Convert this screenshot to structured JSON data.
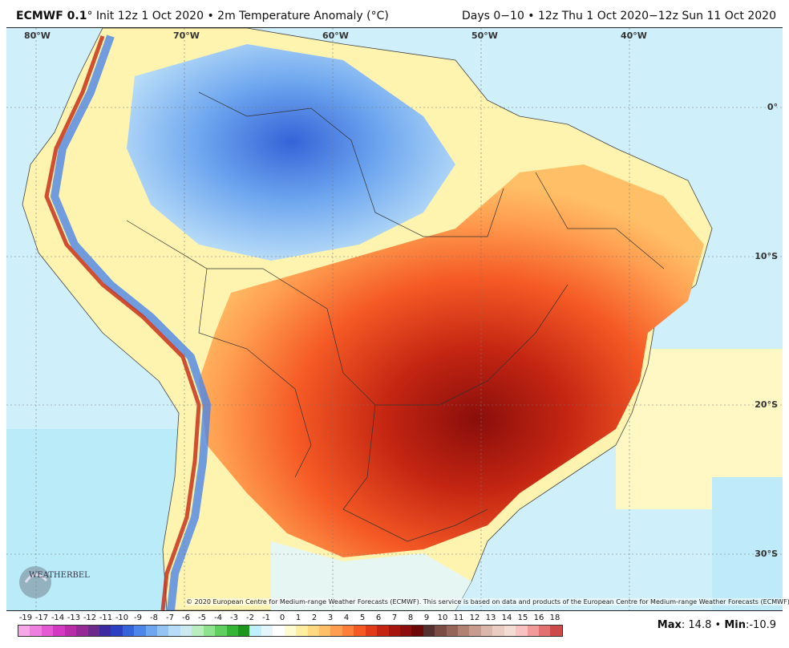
{
  "header": {
    "model": "ECMWF 0.1",
    "degree": "°",
    "init_text": "Init 12z 1 Oct 2020",
    "bullet": "•",
    "field": "2m Temperature Anomaly (°C)",
    "valid": "Days 0−10 • 12z Thu 1 Oct 2020−12z Sun 11 Oct 2020"
  },
  "map": {
    "lon_labels": [
      "80°W",
      "70°W",
      "60°W",
      "50°W",
      "40°W"
    ],
    "lat_labels": [
      "0°",
      "10°S",
      "20°S",
      "30°S"
    ],
    "copyright": "© 2020 European Centre for Medium-range Weather Forecasts (ECMWF). This service is based on data and products of the European Centre for Medium-range Weather Forecasts (ECMWF).",
    "logo_text": "WEATHERBELL"
  },
  "legend": {
    "ticks": [
      "-19",
      "-17",
      "-14",
      "-13",
      "-12",
      "-11",
      "-10",
      "-9",
      "-8",
      "-7",
      "-6",
      "-5",
      "-4",
      "-3",
      "-2",
      "-1",
      "0",
      "1",
      "2",
      "3",
      "4",
      "5",
      "6",
      "7",
      "8",
      "9",
      "10",
      "11",
      "12",
      "13",
      "14",
      "15",
      "16",
      "18"
    ],
    "colors": [
      "#f7a7e8",
      "#ee7fde",
      "#e35ad2",
      "#d339c2",
      "#b82ca8",
      "#932a95",
      "#6c2a8b",
      "#3b2aa0",
      "#2c3fc0",
      "#3563d8",
      "#4c86e8",
      "#6ea6ef",
      "#93c4f4",
      "#b7dcf8",
      "#cde9f0",
      "#b9efbf",
      "#8fe38f",
      "#5fcf5f",
      "#35b535",
      "#1d961d",
      "#bff0ff",
      "#e3f7fb",
      "#ffffff",
      "#fffbd0",
      "#ffeea0",
      "#ffd880",
      "#ffbf66",
      "#ff9e50",
      "#ff7e3a",
      "#f55a25",
      "#e03a18",
      "#c42512",
      "#a5170e",
      "#8a0e0b",
      "#6d0808",
      "#553030",
      "#7a4c44",
      "#96655a",
      "#b08274",
      "#c79c8f",
      "#dbb6aa",
      "#eaccc2",
      "#f3dcd4",
      "#f8c2c2",
      "#f09a9a",
      "#e27070",
      "#cc4a4a"
    ],
    "max_label": "Max",
    "max_value": "14.8",
    "min_label": "Min",
    "min_value": "-10.9",
    "stats_sep": "•"
  }
}
